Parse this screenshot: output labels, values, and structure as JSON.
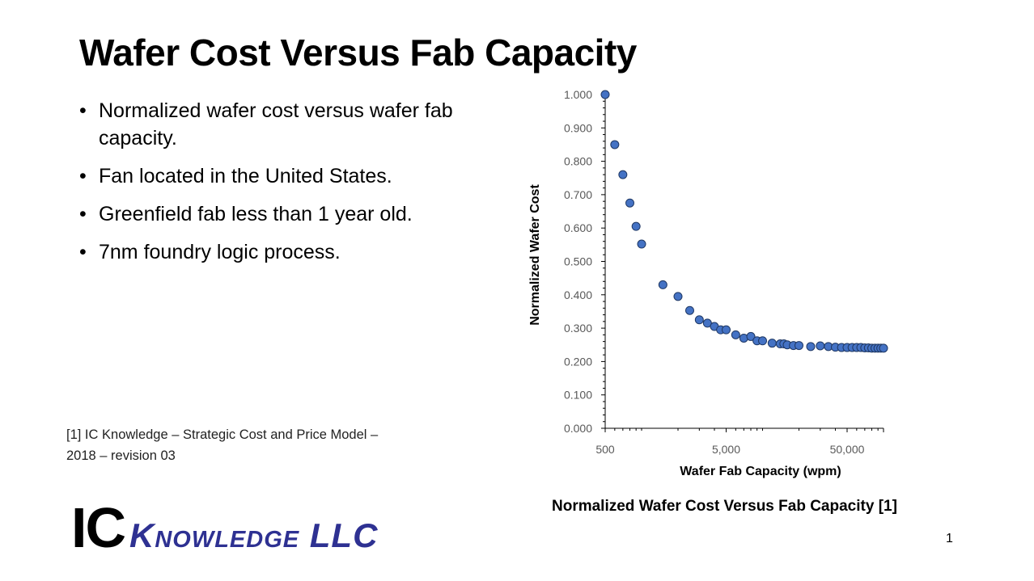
{
  "slide": {
    "title": "Wafer Cost Versus Fab Capacity",
    "bullets": [
      "Normalized wafer cost versus wafer fab capacity.",
      "Fan located in the United States.",
      "Greenfield fab less than 1 year old.",
      "7nm foundry logic process."
    ],
    "bullet_glyph": "•",
    "reference_line1": "[1] IC Knowledge – Strategic Cost and Price Model –",
    "reference_line2": "2018 – revision 03",
    "logo": {
      "ic": "IC",
      "rest": "Knowledge LLC"
    },
    "caption": "Normalized Wafer Cost Versus Fab Capacity [1]",
    "page_number": "1"
  },
  "chart_data": {
    "type": "scatter",
    "xlabel": "Wafer Fab Capacity (wpm)",
    "ylabel": "Normalized Wafer Cost",
    "x_scale": "log",
    "xlim": [
      500,
      100000
    ],
    "ylim": [
      0,
      1
    ],
    "x_tick_labels": [
      "500",
      "5,000",
      "50,000"
    ],
    "y_tick_labels": [
      "0.000",
      "0.100",
      "0.200",
      "0.300",
      "0.400",
      "0.500",
      "0.600",
      "0.700",
      "0.800",
      "0.900",
      "1.000"
    ],
    "grid": false,
    "marker_color": "#4472c4",
    "marker_edge": "#1f3864",
    "x": [
      500,
      600,
      700,
      800,
      900,
      1000,
      1500,
      2000,
      2500,
      3000,
      3500,
      4000,
      4500,
      5000,
      6000,
      7000,
      8000,
      9000,
      10000,
      12000,
      14000,
      15000,
      16000,
      18000,
      20000,
      25000,
      30000,
      35000,
      40000,
      45000,
      50000,
      55000,
      60000,
      65000,
      70000,
      75000,
      80000,
      85000,
      90000,
      95000,
      100000
    ],
    "y": [
      1.0,
      0.85,
      0.76,
      0.675,
      0.605,
      0.552,
      0.43,
      0.395,
      0.353,
      0.325,
      0.315,
      0.305,
      0.295,
      0.295,
      0.28,
      0.27,
      0.275,
      0.262,
      0.262,
      0.255,
      0.253,
      0.253,
      0.25,
      0.248,
      0.248,
      0.245,
      0.247,
      0.245,
      0.243,
      0.242,
      0.242,
      0.242,
      0.242,
      0.242,
      0.241,
      0.241,
      0.24,
      0.24,
      0.24,
      0.24,
      0.24
    ]
  }
}
